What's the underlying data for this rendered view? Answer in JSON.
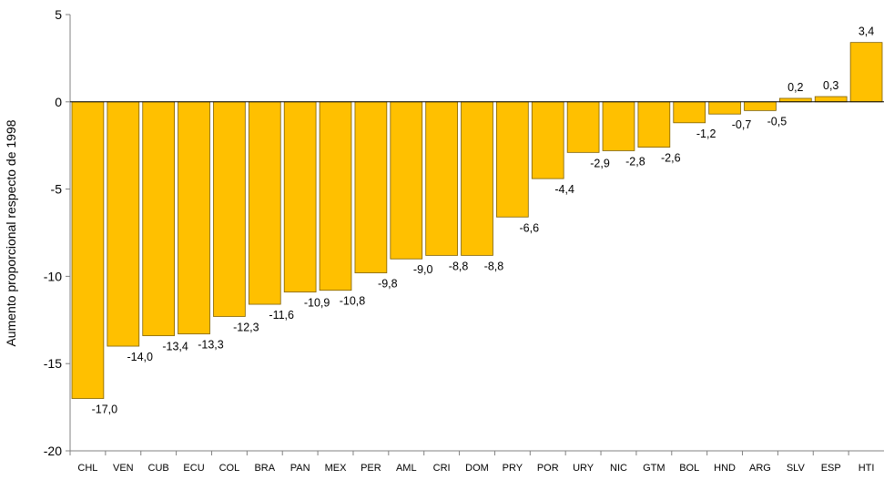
{
  "chart_data": {
    "type": "bar",
    "title": "",
    "xlabel": "",
    "ylabel": "Aumento proporcional respecto de 1998",
    "ylim": [
      -20,
      5
    ],
    "yticks": [
      5,
      0,
      -5,
      -10,
      -15,
      -20
    ],
    "categories": [
      "CHL",
      "VEN",
      "CUB",
      "ECU",
      "COL",
      "BRA",
      "PAN",
      "MEX",
      "PER",
      "AML",
      "CRI",
      "DOM",
      "PRY",
      "POR",
      "URY",
      "NIC",
      "GTM",
      "BOL",
      "HND",
      "ARG",
      "SLV",
      "ESP",
      "HTI"
    ],
    "values": [
      -17.0,
      -14.0,
      -13.4,
      -13.3,
      -12.3,
      -11.6,
      -10.9,
      -10.8,
      -9.8,
      -9.0,
      -8.8,
      -8.8,
      -6.6,
      -4.4,
      -2.9,
      -2.8,
      -2.6,
      -1.2,
      -0.7,
      -0.5,
      0.2,
      0.3,
      3.4
    ],
    "value_labels": [
      "-17,0",
      "-14,0",
      "-13,4",
      "-13,3",
      "-12,3",
      "-11,6",
      "-10,9",
      "-10,8",
      "-9,8",
      "-9,0",
      "-8,8",
      "-8,8",
      "-6,6",
      "-4,4",
      "-2,9",
      "-2,8",
      "-2,6",
      "-1,2",
      "-0,7",
      "-0,5",
      "0,2",
      "0,3",
      "3,4"
    ],
    "bar_color": "#FFC000",
    "bar_edge_color": "#7F6000",
    "axis_color": "#808080",
    "grid": false,
    "legend": "none"
  }
}
